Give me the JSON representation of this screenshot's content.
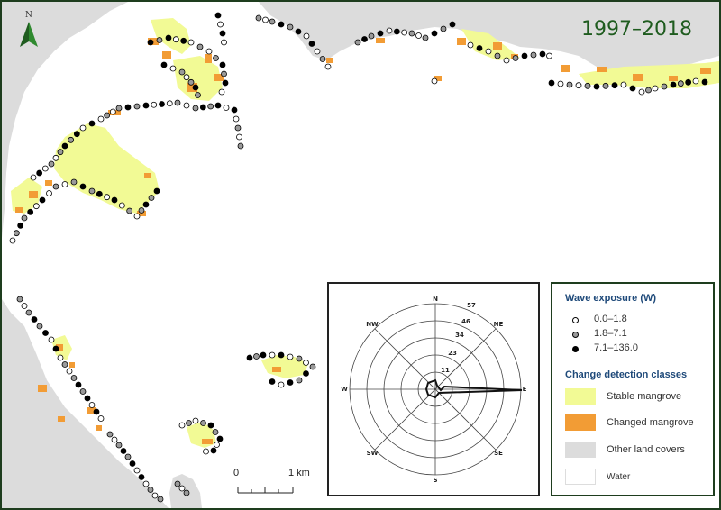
{
  "map": {
    "title": "1997–2018",
    "north_label": "N",
    "scale": {
      "start": "0",
      "end": "1 km"
    },
    "colors": {
      "stable": "#f2fa95",
      "changed": "#f29c35",
      "other": "#dcdcdc",
      "water": "#ffffff",
      "frame": "#1e3d1e",
      "title": "#1f5c1f"
    },
    "icons": [
      "north-arrow-icon",
      "wave-exposure-point-icon"
    ]
  },
  "wind_rose": {
    "rings": [
      "11",
      "23",
      "34",
      "46",
      "57"
    ],
    "directions": [
      "N",
      "NE",
      "E",
      "SE",
      "S",
      "SW",
      "W",
      "NW"
    ]
  },
  "legend": {
    "wave_title": "Wave exposure (W)",
    "wave_classes": [
      {
        "label": "0.0–1.8",
        "fill": "#ffffff"
      },
      {
        "label": "1.8–7.1",
        "fill": "#9a9a9a"
      },
      {
        "label": "7.1–136.0",
        "fill": "#000000"
      }
    ],
    "change_title": "Change detection classes",
    "change_classes": [
      {
        "label": "Stable mangrove",
        "color": "#f2fa95"
      },
      {
        "label": "Changed mangrove",
        "color": "#f29c35"
      },
      {
        "label": "Other land covers",
        "color": "#dcdcdc"
      },
      {
        "label": "Water",
        "color": "#ffffff"
      }
    ]
  }
}
